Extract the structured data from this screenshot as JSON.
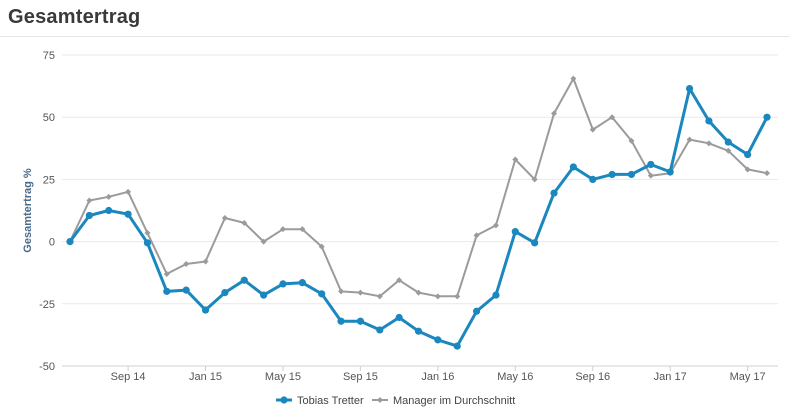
{
  "page": {
    "title": "Gesamtertrag"
  },
  "colors": {
    "primary": "#1a87bf",
    "secondary": "#9b9b9b",
    "grid": "#e9e9e9",
    "axis": "#d0d0d0"
  },
  "chart_data": {
    "type": "line",
    "ylabel": "Gesamtertrag %",
    "ylim": [
      -50,
      75
    ],
    "yticks": [
      75,
      50,
      25,
      0,
      -25,
      -50
    ],
    "x_tick_labels": [
      "Sep 14",
      "Jan 15",
      "May 15",
      "Sep 15",
      "Jan 16",
      "May 16",
      "Sep 16",
      "Jan 17",
      "May 17"
    ],
    "x_tick_index": [
      3,
      7,
      11,
      15,
      19,
      23,
      27,
      31,
      35
    ],
    "grid": "horizontal",
    "legend_position": "bottom-center",
    "series": [
      {
        "name": "Tobias Tretter",
        "color": "#1a87bf",
        "marker": "circle",
        "values": [
          0,
          10.5,
          12.5,
          11,
          -0.5,
          -20,
          -19.5,
          -27.5,
          -20.5,
          -15.5,
          -21.5,
          -17,
          -16.5,
          -21,
          -32,
          -32,
          -35.5,
          -30.5,
          -36,
          -39.5,
          -42,
          -28,
          -21.5,
          4,
          -0.5,
          19.5,
          30,
          25,
          27,
          27,
          31,
          28,
          61.5,
          48.5,
          40,
          35,
          50
        ]
      },
      {
        "name": "Manager im Durchschnitt",
        "color": "#9b9b9b",
        "marker": "diamond",
        "values": [
          0,
          16.5,
          18,
          20,
          3.5,
          -13,
          -9,
          -8,
          9.5,
          7.5,
          0,
          5,
          5,
          -2,
          -20,
          -20.5,
          -22,
          -15.5,
          -20.5,
          -22,
          -22,
          2.5,
          6.5,
          33,
          25,
          51.5,
          65.5,
          45,
          50,
          40.5,
          26.5,
          27.5,
          41,
          39.5,
          36.5,
          29,
          27.5
        ]
      }
    ]
  }
}
